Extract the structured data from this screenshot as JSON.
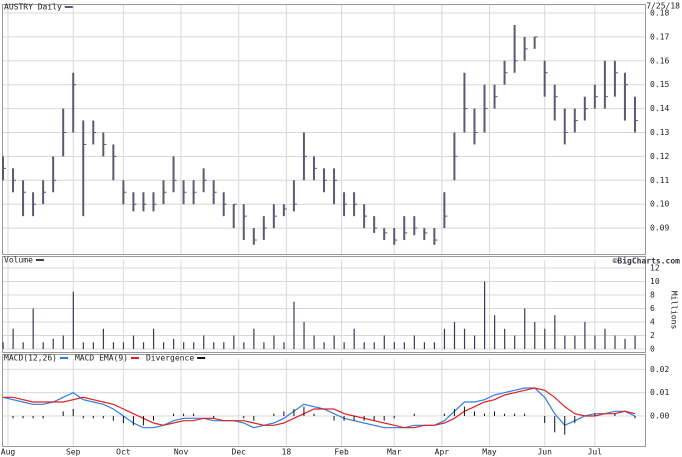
{
  "chart_data": [
    {
      "type": "ohlc",
      "subtitle": "7/25/18",
      "x": [
        0,
        4,
        8,
        12,
        16,
        20,
        24,
        28,
        32,
        36,
        40,
        44,
        48,
        52,
        56,
        60,
        64,
        68,
        72,
        76,
        80,
        84,
        88,
        92,
        96,
        100,
        104,
        108,
        112,
        116,
        120,
        124,
        128,
        132,
        136,
        140,
        144,
        148,
        152,
        156,
        160,
        164,
        168,
        172,
        176,
        180,
        184,
        188,
        192,
        196,
        200,
        204,
        208,
        212,
        216,
        220,
        224,
        228,
        232,
        236,
        240,
        244,
        248,
        252
      ],
      "xlim": [
        0,
        256
      ],
      "ylim": [
        0.08,
        0.18
      ],
      "yticks": [
        0.09,
        {
          "value": 0.1,
          "label": "0.10"
        },
        0.11,
        0.12,
        0.13,
        0.14,
        0.15,
        0.16,
        0.17,
        0.18
      ],
      "grid": true,
      "series": [
        {
          "name": "AUSTRY Daily",
          "color": "#5a5a72",
          "high": [
            0.12,
            0.115,
            0.11,
            0.105,
            0.11,
            0.12,
            0.14,
            0.155,
            0.135,
            0.135,
            0.13,
            0.125,
            0.11,
            0.105,
            0.105,
            0.105,
            0.11,
            0.12,
            0.11,
            0.11,
            0.115,
            0.11,
            0.105,
            0.1,
            0.1,
            0.09,
            0.095,
            0.1,
            0.1,
            0.11,
            0.13,
            0.12,
            0.115,
            0.115,
            0.105,
            0.105,
            0.1,
            0.095,
            0.09,
            0.09,
            0.095,
            0.095,
            0.09,
            0.09,
            0.105,
            0.13,
            0.155,
            0.14,
            0.15,
            0.15,
            0.16,
            0.175,
            0.17,
            0.17,
            0.16,
            0.15,
            0.14,
            0.14,
            0.145,
            0.15,
            0.16,
            0.16,
            0.155,
            0.145
          ],
          "low": [
            0.11,
            0.105,
            0.095,
            0.095,
            0.1,
            0.105,
            0.12,
            0.13,
            0.095,
            0.125,
            0.12,
            0.11,
            0.1,
            0.097,
            0.097,
            0.097,
            0.1,
            0.105,
            0.1,
            0.1,
            0.105,
            0.1,
            0.095,
            0.09,
            0.085,
            0.083,
            0.085,
            0.09,
            0.095,
            0.097,
            0.11,
            0.11,
            0.105,
            0.1,
            0.095,
            0.095,
            0.09,
            0.088,
            0.085,
            0.083,
            0.085,
            0.087,
            0.085,
            0.083,
            0.09,
            0.11,
            0.13,
            0.125,
            0.13,
            0.14,
            0.15,
            0.155,
            0.16,
            0.165,
            0.145,
            0.135,
            0.125,
            0.13,
            0.135,
            0.14,
            0.14,
            0.145,
            0.135,
            0.13
          ],
          "close": [
            0.115,
            0.11,
            0.105,
            0.1,
            0.105,
            0.11,
            0.13,
            0.15,
            0.125,
            0.13,
            0.125,
            0.12,
            0.105,
            0.1,
            0.1,
            0.1,
            0.105,
            0.11,
            0.105,
            0.105,
            0.11,
            0.105,
            0.1,
            0.1,
            0.095,
            0.085,
            0.09,
            0.095,
            0.098,
            0.1,
            0.12,
            0.115,
            0.11,
            0.11,
            0.1,
            0.1,
            0.095,
            0.09,
            0.088,
            0.085,
            0.088,
            0.09,
            0.088,
            0.085,
            0.095,
            0.12,
            0.14,
            0.13,
            0.14,
            0.145,
            0.155,
            0.16,
            0.165,
            0.17,
            0.155,
            0.145,
            0.13,
            0.135,
            0.14,
            0.145,
            0.145,
            0.155,
            0.15,
            0.135
          ]
        }
      ]
    },
    {
      "type": "bar",
      "annotation": "©BigCharts.com",
      "y_label": "Millions",
      "x": [
        0,
        4,
        8,
        12,
        16,
        20,
        24,
        28,
        32,
        36,
        40,
        44,
        48,
        52,
        56,
        60,
        64,
        68,
        72,
        76,
        80,
        84,
        88,
        92,
        96,
        100,
        104,
        108,
        112,
        116,
        120,
        124,
        128,
        132,
        136,
        140,
        144,
        148,
        152,
        156,
        160,
        164,
        168,
        172,
        176,
        180,
        184,
        188,
        192,
        196,
        200,
        204,
        208,
        212,
        216,
        220,
        224,
        228,
        232,
        236,
        240,
        244,
        248,
        252
      ],
      "xlim": [
        0,
        256
      ],
      "ylim": [
        0,
        12
      ],
      "yticks": [
        0,
        2,
        4,
        6,
        8,
        10,
        12
      ],
      "grid": true,
      "series": [
        {
          "name": "Volume",
          "color": "#3a3a58",
          "values": [
            1,
            3,
            1,
            6,
            1,
            1.5,
            2,
            8.5,
            1,
            1,
            3,
            1,
            1,
            2,
            1,
            3,
            1,
            1.5,
            1,
            1,
            2,
            1,
            1,
            2,
            1,
            3,
            1,
            2,
            1,
            7,
            4,
            2,
            1,
            2,
            1,
            3,
            1,
            1,
            2,
            1,
            1,
            2,
            1,
            1,
            3,
            4,
            3,
            2,
            10,
            5,
            3,
            2,
            6,
            4,
            3,
            5,
            2,
            2,
            4,
            2,
            3,
            2,
            1.5,
            2
          ]
        }
      ]
    },
    {
      "type": "macd",
      "x": [
        0,
        4,
        8,
        12,
        16,
        20,
        24,
        28,
        32,
        36,
        40,
        44,
        48,
        52,
        56,
        60,
        64,
        68,
        72,
        76,
        80,
        84,
        88,
        92,
        96,
        100,
        104,
        108,
        112,
        116,
        120,
        124,
        128,
        132,
        136,
        140,
        144,
        148,
        152,
        156,
        160,
        164,
        168,
        172,
        176,
        180,
        184,
        188,
        192,
        196,
        200,
        204,
        208,
        212,
        216,
        220,
        224,
        228,
        232,
        236,
        240,
        244,
        248,
        252
      ],
      "xlim": [
        0,
        256
      ],
      "ylim": [
        -0.012,
        0.021
      ],
      "xticks": [
        {
          "value": 2,
          "label": "Aug"
        },
        {
          "value": 28,
          "label": "Sep"
        },
        {
          "value": 48,
          "label": "Oct"
        },
        {
          "value": 71,
          "label": "Nov"
        },
        {
          "value": 94,
          "label": "Dec"
        },
        {
          "value": 113,
          "label": "18"
        },
        {
          "value": 135,
          "label": "Feb"
        },
        {
          "value": 156,
          "label": "Mar"
        },
        {
          "value": 175,
          "label": "Apr"
        },
        {
          "value": 194,
          "label": "May"
        },
        {
          "value": 216,
          "label": "Jun"
        },
        {
          "value": 236,
          "label": "Jul"
        }
      ],
      "yticks": [
        {
          "value": 0,
          "label": "0.00"
        },
        0.01,
        0.02
      ],
      "grid": true,
      "series": [
        {
          "name": "MACD(12,26)",
          "color": "#2f7fe0",
          "values": [
            0.008,
            0.007,
            0.006,
            0.005,
            0.005,
            0.006,
            0.008,
            0.01,
            0.007,
            0.006,
            0.005,
            0.003,
            0,
            -0.003,
            -0.005,
            -0.005,
            -0.004,
            -0.002,
            -0.001,
            -0.001,
            -0.001,
            -0.002,
            -0.002,
            -0.002,
            -0.003,
            -0.005,
            -0.004,
            -0.003,
            -0.001,
            0.002,
            0.005,
            0.004,
            0.003,
            0.001,
            -0.001,
            -0.002,
            -0.003,
            -0.004,
            -0.005,
            -0.005,
            -0.005,
            -0.004,
            -0.004,
            -0.004,
            -0.002,
            0.002,
            0.006,
            0.006,
            0.007,
            0.009,
            0.01,
            0.011,
            0.012,
            0.012,
            0.008,
            0.001,
            -0.004,
            -0.002,
            0,
            0.001,
            0.001,
            0.002,
            0.002,
            0
          ]
        },
        {
          "name": "MACD EMA(9)",
          "color": "#e02020",
          "values": [
            0.008,
            0.008,
            0.007,
            0.006,
            0.006,
            0.006,
            0.006,
            0.007,
            0.008,
            0.007,
            0.006,
            0.005,
            0.003,
            0.001,
            -0.001,
            -0.003,
            -0.004,
            -0.003,
            -0.002,
            -0.002,
            -0.001,
            -0.001,
            -0.002,
            -0.002,
            -0.002,
            -0.003,
            -0.004,
            -0.004,
            -0.003,
            -0.001,
            0.001,
            0.003,
            0.003,
            0.003,
            0.001,
            0,
            -0.001,
            -0.002,
            -0.003,
            -0.004,
            -0.005,
            -0.005,
            -0.004,
            -0.004,
            -0.003,
            -0.001,
            0.002,
            0.004,
            0.006,
            0.007,
            0.009,
            0.01,
            0.011,
            0.012,
            0.011,
            0.008,
            0.004,
            0.001,
            0,
            0,
            0.001,
            0.001,
            0.002,
            0.001
          ]
        },
        {
          "name": "Divergence",
          "color": "#111111",
          "values": [
            0,
            -0.001,
            -0.001,
            -0.001,
            -0.001,
            0,
            0.002,
            0.003,
            -0.001,
            -0.001,
            -0.001,
            -0.002,
            -0.003,
            -0.004,
            -0.004,
            -0.002,
            0,
            0.001,
            0.001,
            0.001,
            0,
            -0.001,
            0,
            0,
            -0.001,
            -0.002,
            0,
            0.001,
            0.002,
            0.003,
            0.004,
            0.001,
            0,
            -0.002,
            -0.002,
            -0.002,
            -0.002,
            -0.002,
            -0.002,
            -0.001,
            0,
            0.001,
            0,
            0,
            0.001,
            0.003,
            0.004,
            0.002,
            0.001,
            0.002,
            0.001,
            0.001,
            0.001,
            0,
            -0.003,
            -0.007,
            -0.008,
            -0.003,
            0,
            0.001,
            0,
            0.001,
            0,
            -0.001
          ]
        }
      ]
    }
  ]
}
